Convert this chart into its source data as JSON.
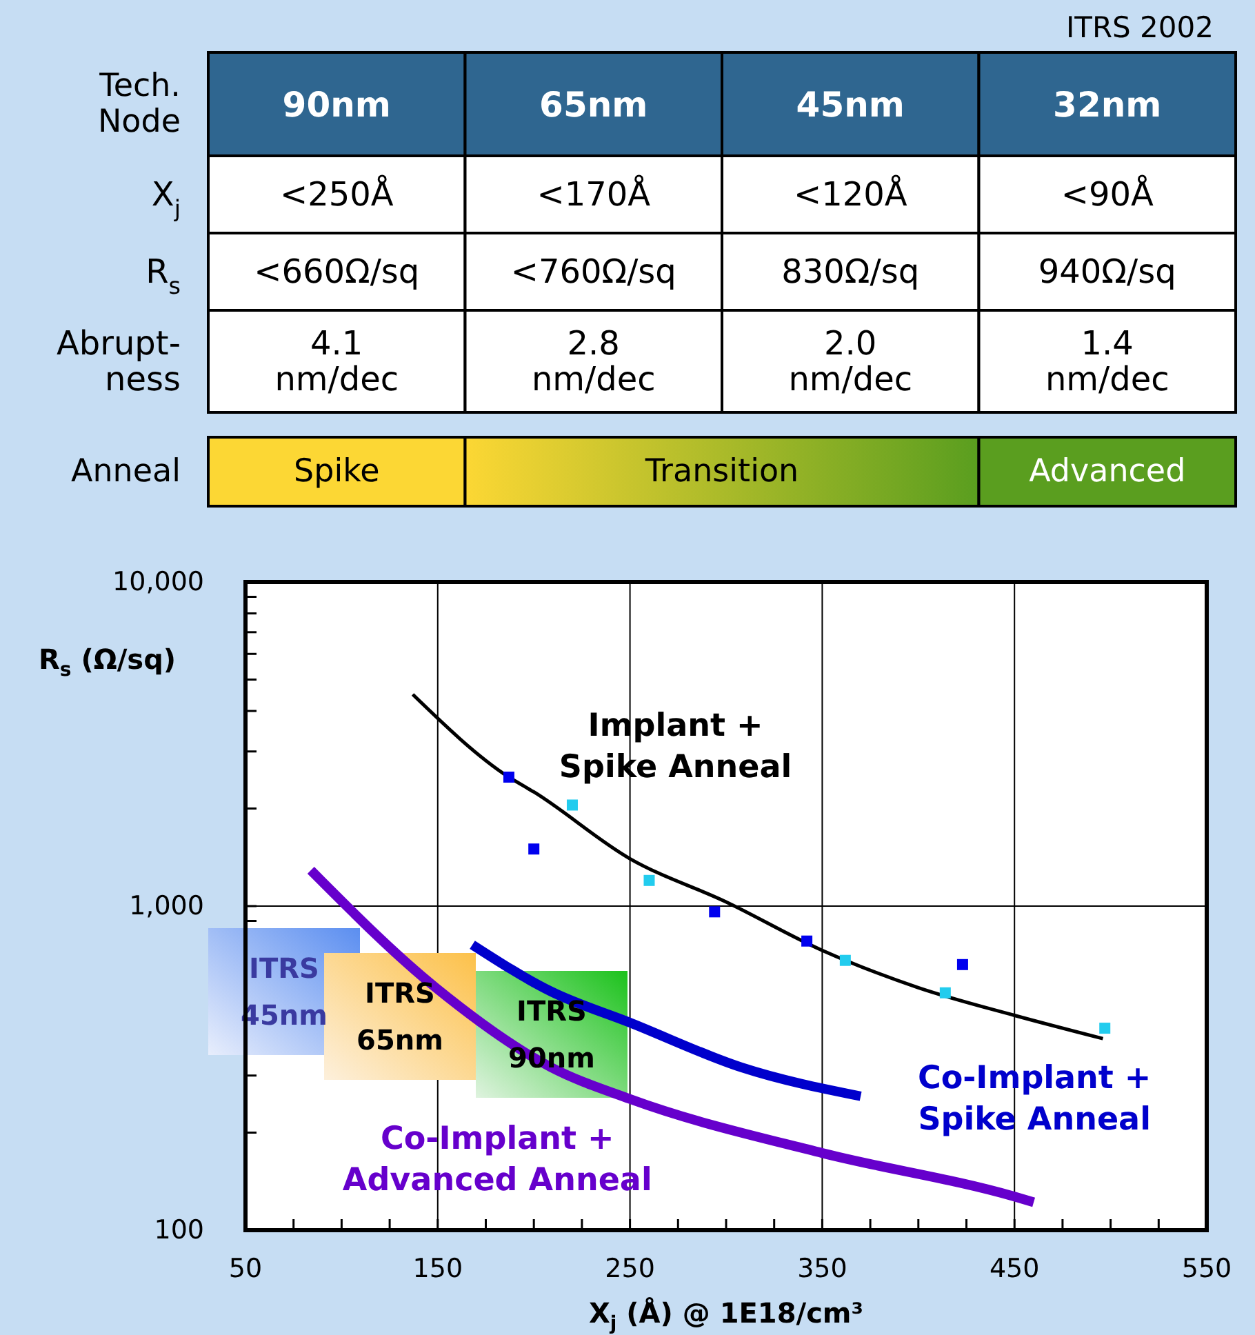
{
  "chart_data": [
    {
      "type": "other",
      "title": "ITRS 2002",
      "xlabel": "Tech.\nNode",
      "categories": [
        "90nm",
        "65nm",
        "45nm",
        "32nm"
      ],
      "y_categories": [
        "X$_{j}$",
        "R$_{s}$",
        "Abrupt-\nness",
        "Anneal"
      ],
      "cell_labels": [
        [
          "<250Å",
          "<170Å",
          "<120Å",
          "<90Å"
        ],
        [
          "<660Ω/sq",
          "<760Ω/sq",
          "830Ω/sq",
          "940Ω/sq"
        ],
        [
          "4.1\nnm/dec",
          "2.8\nnm/dec",
          "2.0\nnm/dec",
          "1.4\nnm/dec"
        ],
        [
          "Spike",
          "Transition",
          null,
          "Advanced"
        ]
      ]
    },
    {
      "type": "line",
      "xlabel": "X$_{j}$ (Å) @ 1E18/cm³",
      "ylabel": "R$_{s}$ (Ω/sq)",
      "log": "y",
      "grid": true,
      "xlim": [
        50,
        550
      ],
      "ylim": [
        100,
        10000
      ],
      "xticks": [
        50,
        {
          "value": 75,
          "label": null
        },
        {
          "value": 100,
          "label": null
        },
        {
          "value": 125,
          "label": null
        },
        150,
        {
          "value": 175,
          "label": null
        },
        {
          "value": 200,
          "label": null
        },
        {
          "value": 225,
          "label": null
        },
        250,
        {
          "value": 275,
          "label": null
        },
        {
          "value": 300,
          "label": null
        },
        {
          "value": 325,
          "label": null
        },
        350,
        {
          "value": 375,
          "label": null
        },
        {
          "value": 400,
          "label": null
        },
        {
          "value": 425,
          "label": null
        },
        450,
        {
          "value": 475,
          "label": null
        },
        {
          "value": 500,
          "label": null
        },
        {
          "value": 525,
          "label": null
        },
        550
      ],
      "yticks": [
        100,
        {
          "value": 200,
          "label": null
        },
        {
          "value": 300,
          "label": null
        },
        {
          "value": 400,
          "label": null
        },
        {
          "value": 500,
          "label": null
        },
        {
          "value": 600,
          "label": null
        },
        {
          "value": 700,
          "label": null
        },
        {
          "value": 800,
          "label": null
        },
        {
          "value": 900,
          "label": null
        },
        {
          "value": 1000,
          "label": "1,000"
        },
        {
          "value": 2000,
          "label": null
        },
        {
          "value": 3000,
          "label": null
        },
        {
          "value": 4000,
          "label": null
        },
        {
          "value": 5000,
          "label": null
        },
        {
          "value": 6000,
          "label": null
        },
        {
          "value": 7000,
          "label": null
        },
        {
          "value": 8000,
          "label": null
        },
        {
          "value": 9000,
          "label": null
        },
        {
          "value": 10000,
          "label": "10,000"
        }
      ],
      "series": [
        {
          "type": "line",
          "name": "Implant +\nSpike Anneal",
          "color": "#000000",
          "x": [
            137,
            187,
            200,
            250,
            300,
            350,
            400,
            450,
            496
          ],
          "values": [
            4500,
            2500,
            2250,
            1400,
            1030,
            730,
            560,
            460,
            390
          ]
        },
        {
          "type": "line",
          "name": "Co-Implant +\nSpike Anneal",
          "color": "#0000cc",
          "x": [
            168,
            209,
            250,
            308,
            370
          ],
          "values": [
            760,
            545,
            437,
            318,
            259
          ]
        },
        {
          "type": "line",
          "name": "Co-Implant +\nAdvanced Anneal",
          "color": "#6600cc",
          "x": [
            84,
            149,
            209,
            250,
            350,
            450,
            460
          ],
          "values": [
            1290,
            560,
            318,
            254,
            173,
            127,
            122
          ]
        },
        {
          "type": "scatter",
          "marker": "square",
          "color": "#0000ee",
          "x": [
            187,
            200,
            294,
            342,
            423
          ],
          "values": [
            2500,
            1500,
            960,
            780,
            660
          ]
        },
        {
          "type": "scatter",
          "marker": "square",
          "color": "#22ccee",
          "x": [
            220,
            260,
            362,
            414,
            497
          ],
          "values": [
            2050,
            1200,
            680,
            540,
            420
          ]
        }
      ],
      "annotations": [
        "ITRS\n45nm",
        "ITRS\n65nm",
        "ITRS\n90nm"
      ]
    }
  ]
}
